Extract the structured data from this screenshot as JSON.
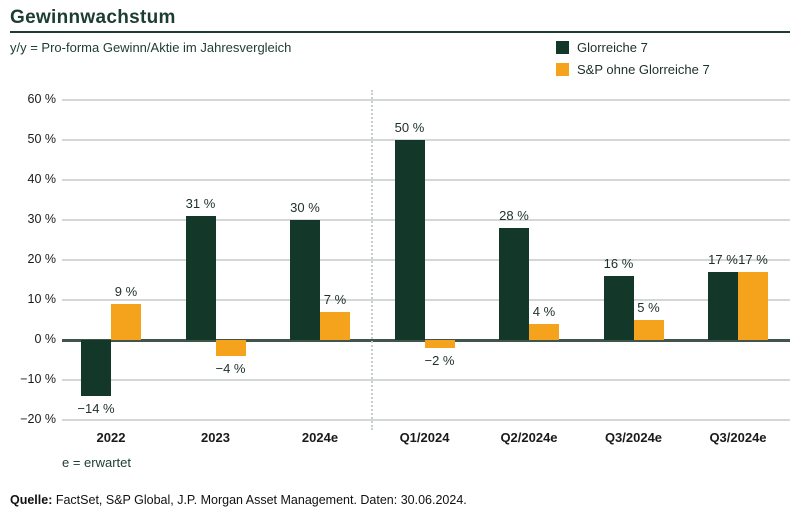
{
  "page": {
    "title": "Gewinnwachstum",
    "subtitle": "y/y = Pro-forma Gewinn/Aktie im Jahresvergleich",
    "note": "e = erwartet",
    "source_label": "Quelle:",
    "source_text": " FactSet, S&P Global, J.P. Morgan Asset Management. Daten: 30.06.2024."
  },
  "colors": {
    "green": "#133829",
    "orange": "#f5a31d",
    "grid": "#d3d8d7",
    "zero_axis": "#40554c",
    "divider": "#c8cecd",
    "dark_text": "#1d3c32",
    "tick_text": "#1a1a1a",
    "label_text": "#1d3028"
  },
  "chart_data": {
    "type": "bar",
    "title": "Gewinnwachstum",
    "subtitle": "y/y = Pro-forma Gewinn/Aktie im Jahresvergleich",
    "categories": [
      "2022",
      "2023",
      "2024e",
      "Q1/2024",
      "Q2/2024e",
      "Q3/2024e",
      "Q3/2024e"
    ],
    "series": [
      {
        "name": "Glorreiche 7",
        "color_key": "green",
        "values": [
          -14,
          31,
          30,
          50,
          28,
          16,
          17
        ],
        "labels": [
          "−14 %",
          "31 %",
          "30 %",
          "50 %",
          "28 %",
          "16 %",
          "17 %"
        ]
      },
      {
        "name": "S&P ohne Glorreiche 7",
        "color_key": "orange",
        "values": [
          9,
          -4,
          7,
          -2,
          4,
          5,
          17
        ],
        "labels": [
          "9 %",
          "−4 %",
          "7 %",
          "−2 %",
          "4 %",
          "5 %",
          "17 %"
        ]
      }
    ],
    "ylim": [
      -20,
      60
    ],
    "ytick_step": 10,
    "ytick_labels": [
      "−20 %",
      "−10 %",
      "0 %",
      "10 %",
      "20 %",
      "30 %",
      "40 %",
      "50 %",
      "60 %"
    ],
    "grid": "horizontal",
    "legend_position": "top-right",
    "divider_after_category": "2024e",
    "xnote": "e = erwartet"
  }
}
